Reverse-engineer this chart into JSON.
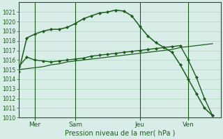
{
  "title": "Pression niveau de la mer( hPa )",
  "ylim": [
    1010,
    1022
  ],
  "yticks": [
    1010,
    1011,
    1012,
    1013,
    1014,
    1015,
    1016,
    1017,
    1018,
    1019,
    1020,
    1021
  ],
  "day_ticks": [
    2,
    7,
    15,
    21
  ],
  "day_labels": [
    "Mer",
    "Sam",
    "Jeu",
    "Ven"
  ],
  "bg_color": "#d8ede8",
  "grid_color": "#b8d8c8",
  "line_color": "#1a5c1a",
  "xlim": [
    0,
    25
  ],
  "line_main": {
    "x": [
      0,
      1,
      2,
      3,
      4,
      5,
      6,
      7,
      8,
      9,
      10,
      11,
      12,
      13,
      14,
      15,
      16,
      17,
      18,
      19,
      20,
      21,
      22,
      23,
      24
    ],
    "y": [
      1014.8,
      1018.3,
      1018.7,
      1019.0,
      1019.2,
      1019.2,
      1019.4,
      1019.8,
      1020.3,
      1020.6,
      1020.9,
      1021.0,
      1021.2,
      1021.1,
      1020.6,
      1019.5,
      1018.5,
      1017.8,
      1017.3,
      1016.8,
      1015.5,
      1014.0,
      1012.5,
      1011.0,
      1010.2
    ]
  },
  "line_mid": {
    "x": [
      0,
      1,
      2,
      3,
      4,
      5,
      6,
      7,
      8,
      9,
      10,
      11,
      12,
      13,
      14,
      15,
      16,
      17,
      18,
      19,
      20,
      21,
      22,
      23,
      24
    ],
    "y": [
      1015.3,
      1016.3,
      1016.0,
      1015.9,
      1015.8,
      1015.9,
      1016.0,
      1016.1,
      1016.2,
      1016.4,
      1016.5,
      1016.6,
      1016.7,
      1016.8,
      1016.9,
      1017.0,
      1017.1,
      1017.2,
      1017.3,
      1017.4,
      1017.5,
      1016.0,
      1014.2,
      1012.0,
      1010.2
    ]
  },
  "line_diag": {
    "x": [
      0,
      1,
      2,
      3,
      4,
      5,
      6,
      7,
      8,
      9,
      10,
      11,
      12,
      13,
      14,
      15,
      16,
      17,
      18,
      19,
      20,
      21,
      22,
      23,
      24
    ],
    "y": [
      1015.0,
      1015.1,
      1015.2,
      1015.3,
      1015.5,
      1015.6,
      1015.8,
      1015.9,
      1016.0,
      1016.1,
      1016.2,
      1016.3,
      1016.4,
      1016.5,
      1016.6,
      1016.7,
      1016.8,
      1016.9,
      1017.0,
      1017.1,
      1017.3,
      1017.4,
      1017.5,
      1017.6,
      1017.7
    ]
  }
}
